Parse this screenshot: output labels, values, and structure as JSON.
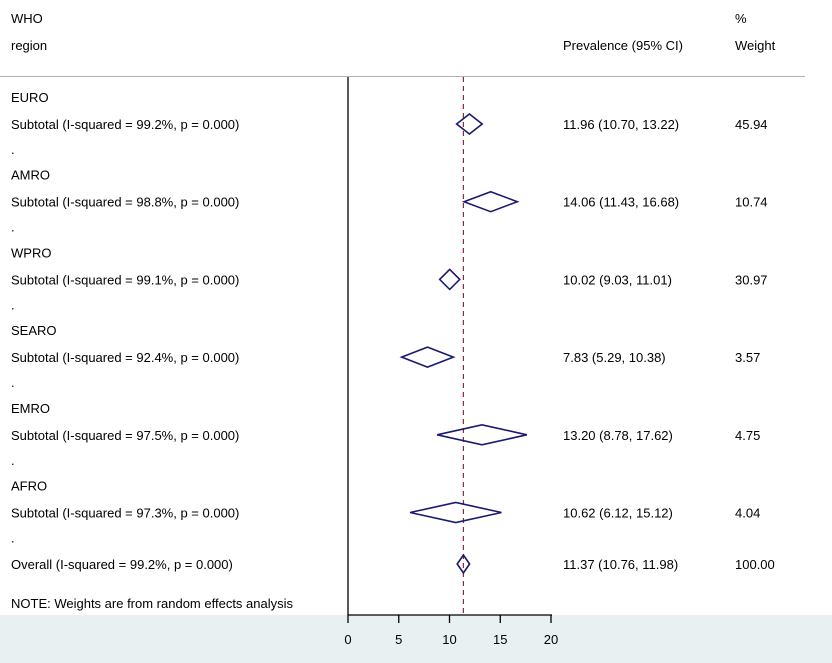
{
  "chart_data": {
    "type": "forest",
    "header": {
      "col1_line1": "WHO",
      "col1_line2": "region",
      "col2": "Prevalence (95% CI)",
      "col3_line1": "%",
      "col3_line2": "Weight"
    },
    "groups": [
      {
        "name": "EURO",
        "label": "Subtotal  (I-squared = 99.2%, p = 0.000)",
        "est": 11.96,
        "lo": 10.7,
        "hi": 13.22,
        "ci_text": "11.96 (10.70, 13.22)",
        "weight": "45.94"
      },
      {
        "name": "AMRO",
        "label": "Subtotal  (I-squared = 98.8%, p = 0.000)",
        "est": 14.06,
        "lo": 11.43,
        "hi": 16.68,
        "ci_text": "14.06 (11.43, 16.68)",
        "weight": "10.74"
      },
      {
        "name": "WPRO",
        "label": "Subtotal  (I-squared = 99.1%, p = 0.000)",
        "est": 10.02,
        "lo": 9.03,
        "hi": 11.01,
        "ci_text": "10.02 (9.03, 11.01)",
        "weight": "30.97"
      },
      {
        "name": "SEARO",
        "label": "Subtotal  (I-squared = 92.4%, p = 0.000)",
        "est": 7.83,
        "lo": 5.29,
        "hi": 10.38,
        "ci_text": "7.83 (5.29, 10.38)",
        "weight": "3.57"
      },
      {
        "name": "EMRO",
        "label": "Subtotal  (I-squared = 97.5%, p = 0.000)",
        "est": 13.2,
        "lo": 8.78,
        "hi": 17.62,
        "ci_text": "13.20 (8.78, 17.62)",
        "weight": "4.75"
      },
      {
        "name": "AFRO",
        "label": "Subtotal  (I-squared = 97.3%, p = 0.000)",
        "est": 10.62,
        "lo": 6.12,
        "hi": 15.12,
        "ci_text": "10.62 (6.12, 15.12)",
        "weight": "4.04"
      }
    ],
    "spacer": ".",
    "overall": {
      "label": "Overall  (I-squared = 99.2%, p = 0.000)",
      "est": 11.37,
      "lo": 10.76,
      "hi": 11.98,
      "ci_text": "11.37 (10.76, 11.98)",
      "weight": "100.00"
    },
    "note": "NOTE: Weights are from random effects analysis",
    "xlim": [
      0,
      20
    ],
    "xticks": [
      "0",
      "5",
      "10",
      "15",
      "20"
    ],
    "colors": {
      "diamond": "#1a1a6e",
      "refline": "#8b2a3a",
      "axis_band": "#e9f0f2",
      "separator": "#b0b0b0"
    }
  }
}
